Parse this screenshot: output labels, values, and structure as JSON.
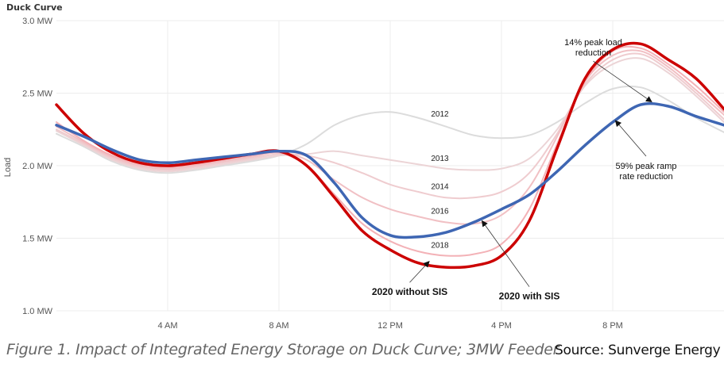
{
  "chart_data": {
    "type": "line",
    "title": "Duck Curve",
    "xlabel": "",
    "ylabel": "Load",
    "ylim": [
      1.0,
      3.0
    ],
    "xlim": [
      0,
      24
    ],
    "y_ticks": [
      {
        "value": 3.0,
        "label": "3.0 MW"
      },
      {
        "value": 2.5,
        "label": "2.5 MW"
      },
      {
        "value": 2.0,
        "label": "2.0 MW"
      },
      {
        "value": 1.5,
        "label": "1.5 MW"
      },
      {
        "value": 1.0,
        "label": "1.0 MW"
      }
    ],
    "x_ticks": [
      {
        "value": 4,
        "label": "4 AM"
      },
      {
        "value": 8,
        "label": "8 AM"
      },
      {
        "value": 12,
        "label": "12 PM"
      },
      {
        "value": 16,
        "label": "4 PM"
      },
      {
        "value": 20,
        "label": "8 PM"
      }
    ],
    "grid": true,
    "x": [
      0,
      1,
      2,
      3,
      4,
      5,
      6,
      7,
      8,
      9,
      10,
      11,
      12,
      13,
      14,
      15,
      16,
      17,
      18,
      19,
      20,
      21,
      22,
      23,
      24
    ],
    "series": [
      {
        "name": "2012",
        "color": "#dcdcdc",
        "width": 2,
        "label_at": 13.5,
        "values": [
          2.22,
          2.13,
          2.03,
          1.97,
          1.95,
          1.97,
          2.0,
          2.03,
          2.07,
          2.15,
          2.28,
          2.35,
          2.37,
          2.33,
          2.27,
          2.21,
          2.19,
          2.21,
          2.3,
          2.43,
          2.53,
          2.54,
          2.45,
          2.33,
          2.23
        ]
      },
      {
        "name": "2013",
        "color": "#ecd4d6",
        "width": 2,
        "label_at": 13.5,
        "values": [
          2.24,
          2.14,
          2.04,
          1.98,
          1.96,
          1.98,
          2.01,
          2.04,
          2.07,
          2.08,
          2.1,
          2.07,
          2.04,
          2.01,
          1.98,
          1.97,
          1.98,
          2.05,
          2.25,
          2.55,
          2.7,
          2.74,
          2.64,
          2.48,
          2.3
        ]
      },
      {
        "name": "2014",
        "color": "#efcccf",
        "width": 2,
        "label_at": 13.5,
        "values": [
          2.25,
          2.15,
          2.05,
          1.99,
          1.97,
          1.99,
          2.02,
          2.05,
          2.08,
          2.07,
          2.02,
          1.95,
          1.87,
          1.82,
          1.78,
          1.78,
          1.82,
          1.95,
          2.22,
          2.56,
          2.73,
          2.77,
          2.66,
          2.5,
          2.32
        ]
      },
      {
        "name": "2016",
        "color": "#f1c0c4",
        "width": 2,
        "label_at": 13.5,
        "values": [
          2.27,
          2.16,
          2.06,
          2.0,
          1.98,
          2.0,
          2.03,
          2.06,
          2.09,
          2.04,
          1.9,
          1.78,
          1.7,
          1.65,
          1.61,
          1.6,
          1.66,
          1.85,
          2.2,
          2.58,
          2.76,
          2.79,
          2.68,
          2.52,
          2.35
        ]
      },
      {
        "name": "2018",
        "color": "#f3b2b7",
        "width": 2,
        "label_at": 13.5,
        "values": [
          2.3,
          2.17,
          2.07,
          2.01,
          1.99,
          2.01,
          2.04,
          2.07,
          2.09,
          2.0,
          1.8,
          1.6,
          1.48,
          1.41,
          1.38,
          1.39,
          1.46,
          1.7,
          2.15,
          2.58,
          2.79,
          2.81,
          2.7,
          2.55,
          2.37
        ]
      },
      {
        "name": "2020 without SIS",
        "color": "#cc0000",
        "width": 3.5,
        "values": [
          2.42,
          2.22,
          2.09,
          2.02,
          2.0,
          2.02,
          2.05,
          2.08,
          2.1,
          2.0,
          1.78,
          1.55,
          1.42,
          1.33,
          1.3,
          1.31,
          1.38,
          1.62,
          2.12,
          2.6,
          2.8,
          2.84,
          2.73,
          2.6,
          2.39
        ]
      },
      {
        "name": "2020 with SIS",
        "color": "#3e66b3",
        "width": 3.5,
        "values": [
          2.28,
          2.2,
          2.11,
          2.04,
          2.02,
          2.04,
          2.06,
          2.08,
          2.1,
          2.07,
          1.88,
          1.64,
          1.52,
          1.51,
          1.54,
          1.61,
          1.7,
          1.8,
          1.96,
          2.14,
          2.3,
          2.42,
          2.41,
          2.34,
          2.28
        ]
      }
    ],
    "annotations": [
      {
        "text": "2020 without SIS",
        "bold": true,
        "arrow_to": {
          "x": 13.4,
          "y": 1.34
        },
        "text_at": {
          "x": 12.7,
          "y": 1.13
        }
      },
      {
        "text": "2020 with SIS",
        "bold": true,
        "arrow_to": {
          "x": 15.3,
          "y": 1.62
        },
        "text_at": {
          "x": 17.0,
          "y": 1.1
        }
      },
      {
        "text": [
          "14% peak load",
          "reduction"
        ],
        "bold": false,
        "arrow_to": {
          "x": 21.4,
          "y": 2.44
        },
        "text_at": {
          "x": 19.3,
          "y": 2.83
        }
      },
      {
        "text": [
          "59% peak ramp",
          "rate reduction"
        ],
        "bold": false,
        "arrow_to": {
          "x": 20.1,
          "y": 2.31
        },
        "text_at": {
          "x": 21.2,
          "y": 2.0
        }
      }
    ]
  },
  "caption": "Figure 1. Impact of Integrated Energy Storage on Duck Curve; 3MW Feeder",
  "source": "Source: Sunverge Energy"
}
